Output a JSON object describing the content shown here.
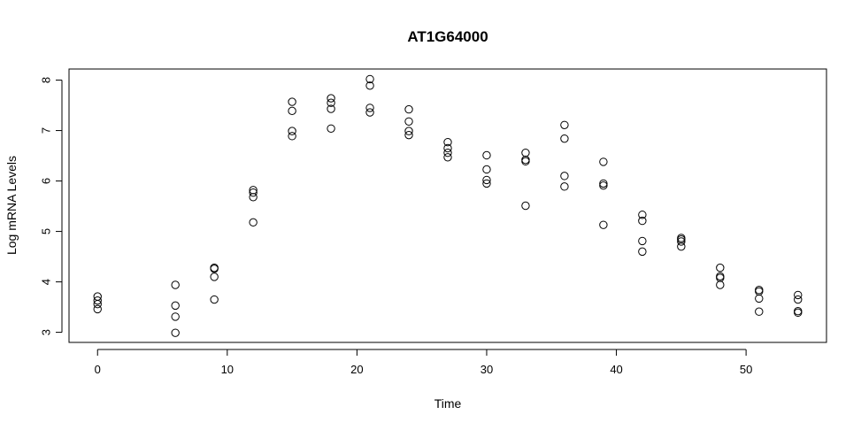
{
  "chart_data": {
    "type": "scatter",
    "title": "AT1G64000",
    "xlabel": "Time",
    "ylabel": "Log mRNA Levels",
    "xlim": [
      -2.2,
      56.2
    ],
    "ylim": [
      2.8,
      8.22
    ],
    "xticks": [
      0,
      10,
      20,
      30,
      40,
      50
    ],
    "yticks": [
      3,
      4,
      5,
      6,
      7,
      8
    ],
    "grid": false,
    "legend": "none",
    "marker": "open-circle",
    "points": [
      {
        "x": 0,
        "y": 3.71
      },
      {
        "x": 0,
        "y": 3.63
      },
      {
        "x": 0,
        "y": 3.56
      },
      {
        "x": 0,
        "y": 3.46
      },
      {
        "x": 6,
        "y": 3.94
      },
      {
        "x": 6,
        "y": 3.53
      },
      {
        "x": 6,
        "y": 3.31
      },
      {
        "x": 6,
        "y": 2.99
      },
      {
        "x": 9,
        "y": 4.28
      },
      {
        "x": 9,
        "y": 4.26
      },
      {
        "x": 9,
        "y": 4.1
      },
      {
        "x": 9,
        "y": 3.65
      },
      {
        "x": 12,
        "y": 5.82
      },
      {
        "x": 12,
        "y": 5.77
      },
      {
        "x": 12,
        "y": 5.68
      },
      {
        "x": 12,
        "y": 5.18
      },
      {
        "x": 15,
        "y": 7.57
      },
      {
        "x": 15,
        "y": 7.39
      },
      {
        "x": 15,
        "y": 6.99
      },
      {
        "x": 15,
        "y": 6.89
      },
      {
        "x": 18,
        "y": 7.64
      },
      {
        "x": 18,
        "y": 7.55
      },
      {
        "x": 18,
        "y": 7.43
      },
      {
        "x": 18,
        "y": 7.04
      },
      {
        "x": 21,
        "y": 8.02
      },
      {
        "x": 21,
        "y": 7.89
      },
      {
        "x": 21,
        "y": 7.45
      },
      {
        "x": 21,
        "y": 7.36
      },
      {
        "x": 24,
        "y": 7.42
      },
      {
        "x": 24,
        "y": 7.18
      },
      {
        "x": 24,
        "y": 6.99
      },
      {
        "x": 24,
        "y": 6.91
      },
      {
        "x": 27,
        "y": 6.77
      },
      {
        "x": 27,
        "y": 6.65
      },
      {
        "x": 27,
        "y": 6.56
      },
      {
        "x": 27,
        "y": 6.47
      },
      {
        "x": 30,
        "y": 6.51
      },
      {
        "x": 30,
        "y": 6.23
      },
      {
        "x": 30,
        "y": 6.02
      },
      {
        "x": 30,
        "y": 5.95
      },
      {
        "x": 33,
        "y": 6.56
      },
      {
        "x": 33,
        "y": 6.42
      },
      {
        "x": 33,
        "y": 6.39
      },
      {
        "x": 33,
        "y": 5.51
      },
      {
        "x": 36,
        "y": 7.11
      },
      {
        "x": 36,
        "y": 6.84
      },
      {
        "x": 36,
        "y": 6.1
      },
      {
        "x": 36,
        "y": 5.89
      },
      {
        "x": 39,
        "y": 6.38
      },
      {
        "x": 39,
        "y": 5.95
      },
      {
        "x": 39,
        "y": 5.91
      },
      {
        "x": 39,
        "y": 5.13
      },
      {
        "x": 42,
        "y": 5.33
      },
      {
        "x": 42,
        "y": 5.21
      },
      {
        "x": 42,
        "y": 4.81
      },
      {
        "x": 42,
        "y": 4.6
      },
      {
        "x": 45,
        "y": 4.87
      },
      {
        "x": 45,
        "y": 4.84
      },
      {
        "x": 45,
        "y": 4.8
      },
      {
        "x": 45,
        "y": 4.7
      },
      {
        "x": 48,
        "y": 4.28
      },
      {
        "x": 48,
        "y": 4.11
      },
      {
        "x": 48,
        "y": 4.08
      },
      {
        "x": 48,
        "y": 3.94
      },
      {
        "x": 51,
        "y": 3.84
      },
      {
        "x": 51,
        "y": 3.81
      },
      {
        "x": 51,
        "y": 3.67
      },
      {
        "x": 51,
        "y": 3.41
      },
      {
        "x": 54,
        "y": 3.74
      },
      {
        "x": 54,
        "y": 3.65
      },
      {
        "x": 54,
        "y": 3.42
      },
      {
        "x": 54,
        "y": 3.39
      }
    ]
  }
}
